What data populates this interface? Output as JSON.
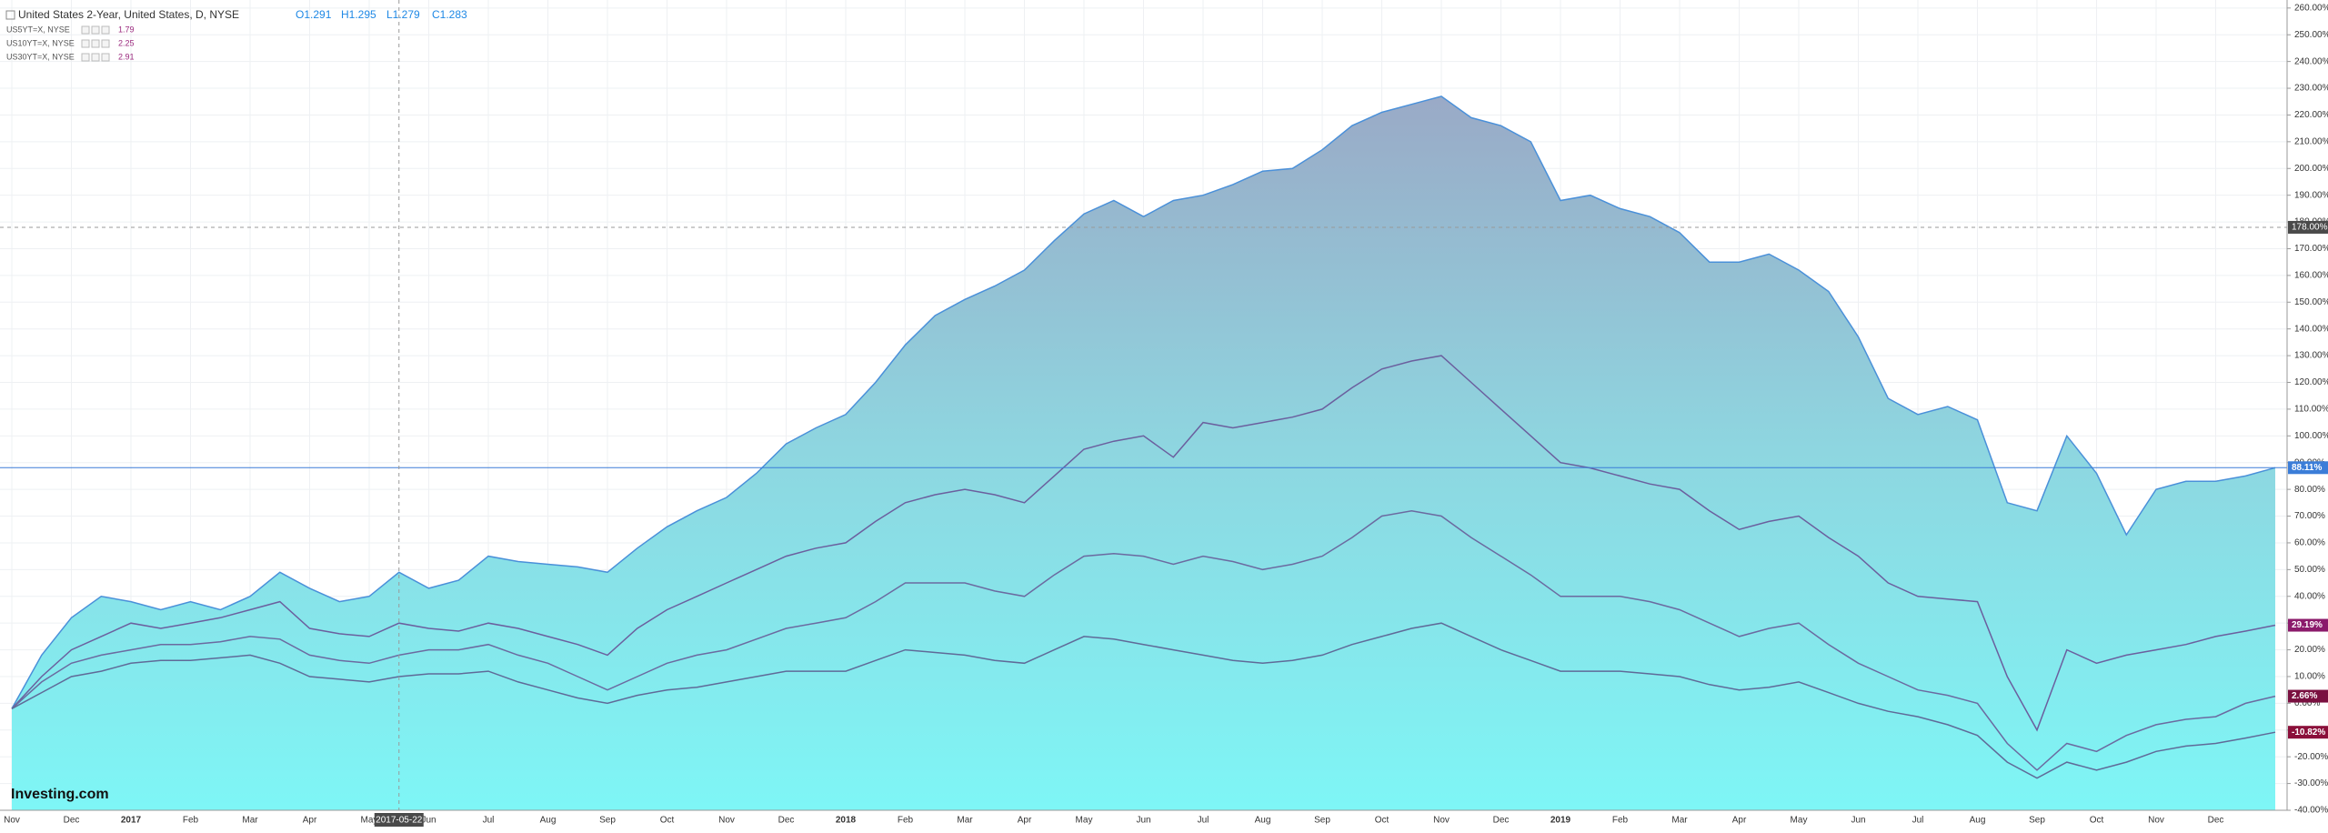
{
  "chart_data": {
    "type": "area-lines",
    "categories": [
      "Nov",
      null,
      "Dec",
      null,
      "2017",
      null,
      "Feb",
      null,
      "Mar",
      null,
      "Apr",
      null,
      "May",
      null,
      "Jun",
      null,
      "Jul",
      null,
      "Aug",
      null,
      "Sep",
      null,
      "Oct",
      null,
      "Nov",
      null,
      "Dec",
      null,
      "2018",
      null,
      "Feb",
      null,
      "Mar",
      null,
      "Apr",
      null,
      "May",
      null,
      "Jun",
      null,
      "Jul",
      null,
      "Aug",
      null,
      "Sep",
      null,
      "Oct",
      null,
      "Nov",
      null,
      "Dec",
      null,
      "2019",
      null,
      "Feb",
      null,
      "Mar",
      null,
      "Apr",
      null,
      "May",
      null,
      "Jun",
      null,
      "Jul",
      null,
      "Aug",
      null,
      "Sep",
      null,
      "Oct",
      null,
      "Nov",
      null,
      "Dec",
      null,
      null
    ],
    "ohlc": [
      "O1.291",
      "H1.295",
      "L1.279",
      "C1.283"
    ],
    "series": [
      {
        "name": "United States 2-Year, United States, D, NYSE",
        "style": "area",
        "color": "#4a90d9",
        "last_label": "88.11%",
        "label_color": "#3b7dd8",
        "values": [
          -2,
          18,
          32,
          40,
          38,
          35,
          38,
          35,
          40,
          49,
          43,
          38,
          40,
          49,
          43,
          46,
          55,
          53,
          52,
          51,
          49,
          58,
          66,
          72,
          77,
          86,
          97,
          103,
          108,
          120,
          134,
          145,
          151,
          156,
          162,
          173,
          183,
          188,
          182,
          188,
          190,
          194,
          199,
          200,
          207,
          216,
          221,
          224,
          227,
          219,
          216,
          210,
          188,
          190,
          185,
          182,
          176,
          165,
          165,
          168,
          162,
          154,
          137,
          114,
          108,
          111,
          106,
          75,
          72,
          100,
          86,
          63,
          80,
          83,
          83,
          85,
          88.11
        ]
      },
      {
        "name": "US5YT=X, NYSE",
        "style": "line",
        "color": "#6b5f9e",
        "price": "1.79",
        "last_label": "29.19%",
        "label_color": "#8b1a6b",
        "values": [
          -2,
          10,
          20,
          25,
          30,
          28,
          30,
          32,
          35,
          38,
          28,
          26,
          25,
          30,
          28,
          27,
          30,
          28,
          25,
          22,
          18,
          28,
          35,
          40,
          45,
          50,
          55,
          58,
          60,
          68,
          75,
          78,
          80,
          78,
          75,
          85,
          95,
          98,
          100,
          92,
          105,
          103,
          105,
          107,
          110,
          118,
          125,
          128,
          130,
          120,
          110,
          100,
          90,
          88,
          85,
          82,
          80,
          72,
          65,
          68,
          70,
          62,
          55,
          45,
          40,
          39,
          38,
          10,
          -10,
          20,
          15,
          18,
          20,
          22,
          25,
          27,
          29.19
        ]
      },
      {
        "name": "US10YT=X, NYSE",
        "style": "line",
        "color": "#6b6aa0",
        "price": "2.25",
        "last_label": "2.66%",
        "label_color": "#7a1040",
        "values": [
          -2,
          8,
          15,
          18,
          20,
          22,
          22,
          23,
          25,
          24,
          18,
          16,
          15,
          18,
          20,
          20,
          22,
          18,
          15,
          10,
          5,
          10,
          15,
          18,
          20,
          24,
          28,
          30,
          32,
          38,
          45,
          45,
          45,
          42,
          40,
          48,
          55,
          56,
          55,
          52,
          55,
          53,
          50,
          52,
          55,
          62,
          70,
          72,
          70,
          62,
          55,
          48,
          40,
          40,
          40,
          38,
          35,
          30,
          25,
          28,
          30,
          22,
          15,
          10,
          5,
          3,
          0,
          -15,
          -25,
          -15,
          -18,
          -12,
          -8,
          -6,
          -5,
          0,
          2.66
        ]
      },
      {
        "name": "US30YT=X, NYSE",
        "style": "line",
        "color": "#5f6a98",
        "price": "2.91",
        "last_label": "-10.82%",
        "label_color": "#8b0f3a",
        "values": [
          -2,
          4,
          10,
          12,
          15,
          16,
          16,
          17,
          18,
          15,
          10,
          9,
          8,
          10,
          11,
          11,
          12,
          8,
          5,
          2,
          0,
          3,
          5,
          6,
          8,
          10,
          12,
          12,
          12,
          16,
          20,
          19,
          18,
          16,
          15,
          20,
          25,
          24,
          22,
          20,
          18,
          16,
          15,
          16,
          18,
          22,
          25,
          28,
          30,
          25,
          20,
          16,
          12,
          12,
          12,
          11,
          10,
          7,
          5,
          6,
          8,
          4,
          0,
          -3,
          -5,
          -8,
          -12,
          -22,
          -28,
          -22,
          -25,
          -22,
          -18,
          -16,
          -15,
          -13,
          -10.82
        ]
      }
    ],
    "ylim": [
      -40,
      263
    ],
    "yticks": [
      {
        "value": -40,
        "label": "-40.00%"
      },
      {
        "value": -30,
        "label": "-30.00%"
      },
      {
        "value": -20,
        "label": "-20.00%"
      },
      {
        "value": -10,
        "label": "-10.00%"
      },
      {
        "value": 0,
        "label": "0.00%"
      },
      {
        "value": 10,
        "label": "10.00%"
      },
      {
        "value": 20,
        "label": "20.00%"
      },
      {
        "value": 30,
        "label": "30.00%"
      },
      {
        "value": 40,
        "label": "40.00%"
      },
      {
        "value": 50,
        "label": "50.00%"
      },
      {
        "value": 60,
        "label": "60.00%"
      },
      {
        "value": 70,
        "label": "70.00%"
      },
      {
        "value": 80,
        "label": "80.00%"
      },
      {
        "value": 90,
        "label": "90.00%"
      },
      {
        "value": 100,
        "label": "100.00%"
      },
      {
        "value": 110,
        "label": "110.00%"
      },
      {
        "value": 120,
        "label": "120.00%"
      },
      {
        "value": 130,
        "label": "130.00%"
      },
      {
        "value": 140,
        "label": "140.00%"
      },
      {
        "value": 150,
        "label": "150.00%"
      },
      {
        "value": 160,
        "label": "160.00%"
      },
      {
        "value": 170,
        "label": "170.00%"
      },
      {
        "value": 180,
        "label": "180.00%"
      },
      {
        "value": 190,
        "label": "190.00%"
      },
      {
        "value": 200,
        "label": "200.00%"
      },
      {
        "value": 210,
        "label": "210.00%"
      },
      {
        "value": 220,
        "label": "220.00%"
      },
      {
        "value": 230,
        "label": "230.00%"
      },
      {
        "value": 240,
        "label": "240.00%"
      },
      {
        "value": 250,
        "label": "250.00%"
      },
      {
        "value": 260,
        "label": "260.00%"
      }
    ],
    "grid": true,
    "crosshair": {
      "x_label": "2017-05-22",
      "x_index": 13,
      "y_label": "178.00%",
      "y_value": 178
    },
    "watermark": "Investing.com"
  }
}
